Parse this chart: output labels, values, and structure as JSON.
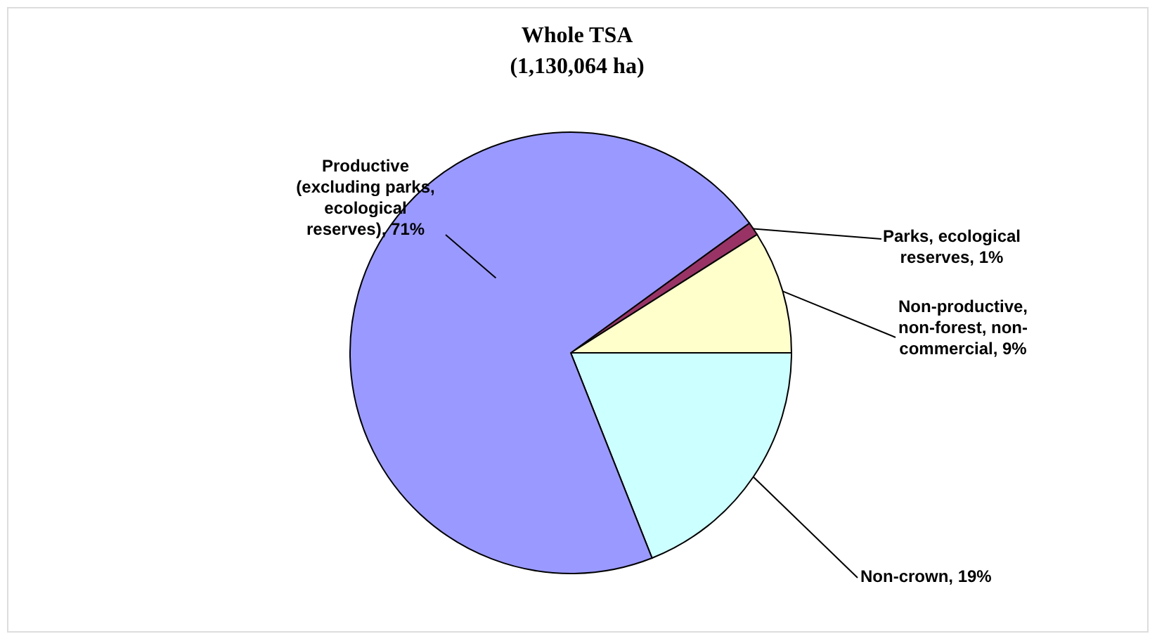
{
  "chart_data": {
    "type": "pie",
    "title": "Whole TSA",
    "subtitle": "(1,130,064 ha)",
    "categories": [
      "Parks, ecological reserves, 1%",
      "Non-productive, non-forest, non-commercial, 9%",
      "Non-crown, 19%",
      "Productive (excluding parks, ecological reserves), 71%"
    ],
    "values": [
      1,
      9,
      19,
      71
    ],
    "colors": [
      "#993366",
      "#ffffcc",
      "#ccffff",
      "#9999ff"
    ],
    "legend": false
  }
}
